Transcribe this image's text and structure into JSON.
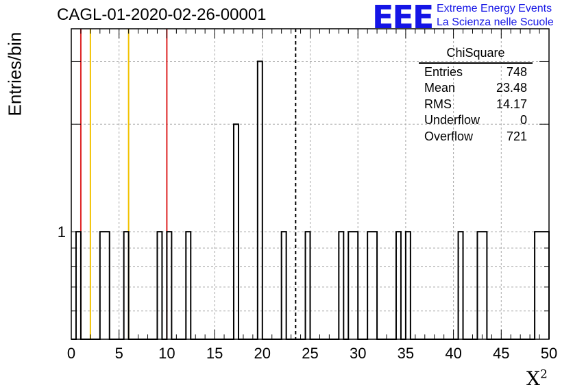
{
  "header": {
    "title": "CAGL-01-2020-02-26-00001",
    "logo_mark": "EEE",
    "logo_line1": "Extreme Energy Events",
    "logo_line2": "La Scienza nelle Scuole"
  },
  "stats": {
    "name": "ChiSquare",
    "rows": [
      {
        "label": "Entries",
        "value": "748"
      },
      {
        "label": "Mean",
        "value": "23.48"
      },
      {
        "label": "RMS",
        "value": "14.17"
      },
      {
        "label": "Underflow",
        "value": "0"
      },
      {
        "label": "Overflow",
        "value": "721"
      }
    ]
  },
  "chart_data": {
    "type": "bar",
    "histogram": true,
    "title": "CAGL-01-2020-02-26-00001",
    "xlabel": "X",
    "xlabel_superscript": "2",
    "ylabel": "Entries/bin",
    "xlim": [
      0,
      50
    ],
    "ylim": [
      0.5,
      3.7
    ],
    "y_log": true,
    "grid": true,
    "bin_width": 0.5,
    "x_ticks": [
      0,
      5,
      10,
      15,
      20,
      25,
      30,
      35,
      40,
      45,
      50
    ],
    "y_ticks": [
      {
        "value": 1,
        "label": "1"
      }
    ],
    "bins": [
      {
        "x": 0.5,
        "value": 1
      },
      {
        "x": 3.0,
        "value": 1
      },
      {
        "x": 3.5,
        "value": 1
      },
      {
        "x": 5.5,
        "value": 1
      },
      {
        "x": 9.0,
        "value": 1
      },
      {
        "x": 10.0,
        "value": 1
      },
      {
        "x": 12.0,
        "value": 1
      },
      {
        "x": 17.0,
        "value": 2
      },
      {
        "x": 19.5,
        "value": 3
      },
      {
        "x": 22.0,
        "value": 1
      },
      {
        "x": 24.5,
        "value": 1
      },
      {
        "x": 28.0,
        "value": 1
      },
      {
        "x": 29.0,
        "value": 1
      },
      {
        "x": 29.5,
        "value": 1
      },
      {
        "x": 31.0,
        "value": 1
      },
      {
        "x": 31.5,
        "value": 1
      },
      {
        "x": 34.0,
        "value": 1
      },
      {
        "x": 35.0,
        "value": 1
      },
      {
        "x": 40.5,
        "value": 1
      },
      {
        "x": 42.5,
        "value": 1
      },
      {
        "x": 43.0,
        "value": 1
      },
      {
        "x": 48.5,
        "value": 1
      },
      {
        "x": 49.0,
        "value": 1
      },
      {
        "x": 49.5,
        "value": 1
      }
    ],
    "vertical_lines": [
      {
        "x": 1.0,
        "color": "#dd2222",
        "style": "solid"
      },
      {
        "x": 2.0,
        "color": "#f2c200",
        "style": "solid"
      },
      {
        "x": 6.0,
        "color": "#f2c200",
        "style": "solid"
      },
      {
        "x": 10.0,
        "color": "#dd2222",
        "style": "solid"
      },
      {
        "x": 23.48,
        "color": "#000000",
        "style": "dashed"
      }
    ],
    "line_color": "#000000",
    "grid_color": "#a8a8a8"
  }
}
